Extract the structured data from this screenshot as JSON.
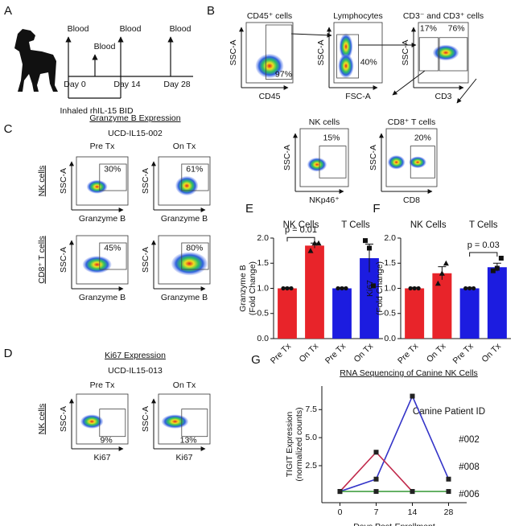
{
  "panel_a": {
    "letter": "A",
    "blood": [
      "Blood",
      "Blood",
      "Blood",
      "Blood"
    ],
    "days": [
      "Day 0",
      "Day 14",
      "Day 28"
    ],
    "treatment": "Inhaled rhIL-15 BID"
  },
  "panel_b": {
    "letter": "B",
    "plots": [
      {
        "title": "CD45⁺ cells",
        "xlabel": "CD45",
        "ylabel": "SSC-A",
        "gates": [
          "97%"
        ]
      },
      {
        "title": "Lymphocytes",
        "xlabel": "FSC-A",
        "ylabel": "SSC-A",
        "gates": [
          "40%"
        ]
      },
      {
        "title": "CD3⁻ and CD3⁺ cells",
        "xlabel": "CD3",
        "ylabel": "SSC-A",
        "gates": [
          "17%",
          "76%"
        ]
      },
      {
        "title": "NK cells",
        "xlabel": "NKp46⁺",
        "ylabel": "SSC-A",
        "gates": [
          "15%"
        ]
      },
      {
        "title": "CD8⁺ T cells",
        "xlabel": "CD8",
        "ylabel": "SSC-A",
        "gates": [
          "20%"
        ]
      }
    ]
  },
  "panel_c": {
    "letter": "C",
    "title": "Granzyme B Expression",
    "subject": "UCD-IL15-002",
    "columns": [
      "Pre Tx",
      "On Tx"
    ],
    "rows": [
      {
        "label": "NK cells",
        "plots": [
          {
            "ylabel": "SSC-A",
            "xlabel": "Granzyme B",
            "gate": "30%"
          },
          {
            "ylabel": "SSC-A",
            "xlabel": "Granzyme B",
            "gate": "61%"
          }
        ]
      },
      {
        "label": "CD8⁺ T cells",
        "plots": [
          {
            "ylabel": "SSC-A",
            "xlabel": "Granzyme B",
            "gate": "45%"
          },
          {
            "ylabel": "SSC-A",
            "xlabel": "Granzyme B",
            "gate": "80%"
          }
        ]
      }
    ]
  },
  "panel_d": {
    "letter": "D",
    "title": "Ki67 Expression",
    "subject": "UCD-IL15-013",
    "columns": [
      "Pre Tx",
      "On Tx"
    ],
    "rows": [
      {
        "label": "NK cells",
        "plots": [
          {
            "ylabel": "SSC-A",
            "xlabel": "Ki67",
            "gate": "9%"
          },
          {
            "ylabel": "SSC-A",
            "xlabel": "Ki67",
            "gate": "13%"
          }
        ]
      }
    ]
  },
  "chart_data": [
    {
      "type": "bar",
      "letter": "E",
      "ylabel": [
        "Granzyme B",
        "(Fold Change)"
      ],
      "ylim": [
        0,
        2
      ],
      "yticks": [
        {
          "value": 0,
          "label": "0.0"
        },
        0.5,
        {
          "value": 1,
          "label": "1.0"
        },
        1.5,
        {
          "value": 2,
          "label": "2.0"
        }
      ],
      "series": [
        {
          "name": "NK Cells",
          "color": "#e8242a",
          "marker": "triangle",
          "categories": [
            "Pre Tx",
            "On Tx"
          ],
          "values": [
            1.0,
            1.85
          ],
          "errors": [
            0.02,
            0.05
          ],
          "points": [
            [
              1.0,
              1.0,
              1.0
            ],
            [
              1.75,
              1.9,
              1.9
            ]
          ]
        },
        {
          "name": "T Cells",
          "color": "#1c1ce0",
          "marker": "square",
          "categories": [
            "Pre Tx",
            "On Tx"
          ],
          "values": [
            1.0,
            1.6
          ],
          "errors": [
            0.02,
            0.28
          ],
          "points": [
            [
              1.0,
              1.0,
              1.0
            ],
            [
              1.95,
              1.8,
              1.05
            ]
          ]
        }
      ],
      "annotation": {
        "text": "p = 0.01",
        "series": 0
      }
    },
    {
      "type": "bar",
      "letter": "F",
      "ylabel": [
        "Ki67",
        "(Fold Change)"
      ],
      "ylim": [
        0,
        2
      ],
      "yticks": [
        {
          "value": 0,
          "label": "0.0"
        },
        0.5,
        {
          "value": 1,
          "label": "1.0"
        },
        1.5,
        {
          "value": 2,
          "label": "2.0"
        }
      ],
      "series": [
        {
          "name": "NK Cells",
          "color": "#e8242a",
          "marker": "triangle",
          "categories": [
            "Pre Tx",
            "On Tx"
          ],
          "values": [
            1.0,
            1.3
          ],
          "errors": [
            0.02,
            0.13
          ],
          "points": [
            [
              1.0,
              1.0,
              1.0
            ],
            [
              1.1,
              1.3,
              1.5
            ]
          ]
        },
        {
          "name": "T Cells",
          "color": "#1c1ce0",
          "marker": "square",
          "categories": [
            "Pre Tx",
            "On Tx"
          ],
          "values": [
            1.0,
            1.42
          ],
          "errors": [
            0.02,
            0.08
          ],
          "points": [
            [
              1.0,
              1.0,
              1.0
            ],
            [
              1.35,
              1.4,
              1.6
            ]
          ]
        }
      ],
      "annotation": {
        "text": "p = 0.03",
        "series": 1
      }
    },
    {
      "type": "line",
      "letter": "G",
      "title": "RNA Sequencing of Canine NK Cells",
      "xlabel": "Days Post-Enrollment",
      "ylabel": [
        "TIGIT Expression",
        "(normalized counts)"
      ],
      "categories": [
        "0",
        "7",
        "14",
        "28"
      ],
      "ylim": [
        -0.8,
        9.6
      ],
      "yticks": [
        2.5,
        {
          "value": 5,
          "label": "5.0"
        },
        7.5
      ],
      "legend_title": "Canine Patient ID",
      "series": [
        {
          "name": "#002",
          "color": "#3434c8",
          "values": [
            0.2,
            1.3,
            8.7,
            1.3
          ]
        },
        {
          "name": "#008",
          "color": "#c0284a",
          "values": [
            0.2,
            3.7,
            0.2,
            null
          ]
        },
        {
          "name": "#006",
          "color": "#44a044",
          "values": [
            0.2,
            0.2,
            0.2,
            0.2
          ]
        }
      ]
    }
  ]
}
